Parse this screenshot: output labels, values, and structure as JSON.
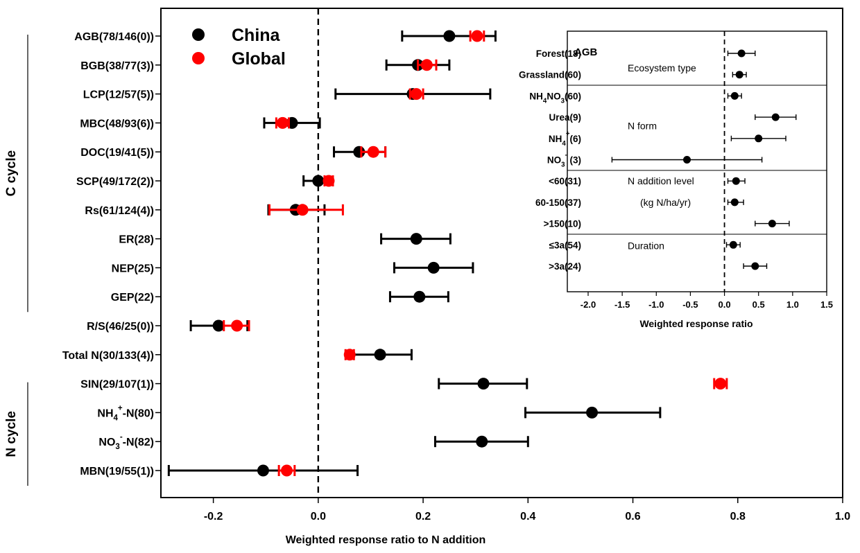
{
  "colors": {
    "china": "#000000",
    "global": "#ff0000",
    "axis": "#000000"
  },
  "chart_data": [
    {
      "type": "scatter",
      "xlabel": "Weighted response ratio to N addition",
      "ylabel": "",
      "xlim": [
        -0.3,
        1.0
      ],
      "xticks": [
        "-0.2",
        "0.0",
        "0.2",
        "0.4",
        "0.6",
        "0.8",
        "1.0"
      ],
      "xtick_values": [
        -0.2,
        0.0,
        0.2,
        0.4,
        0.6,
        0.8,
        1.0
      ],
      "reference_line": 0,
      "legend": {
        "position": "top-left",
        "entries": [
          "China",
          "Global"
        ]
      },
      "groups": [
        {
          "label": "C cycle",
          "from": 0,
          "to": 9
        },
        {
          "label": "N cycle",
          "from": 12,
          "to": 15
        }
      ],
      "categories": [
        {
          "text": "AGB(78/146(0))"
        },
        {
          "text": "BGB(38/77(3))"
        },
        {
          "text": "LCP(12/57(5))"
        },
        {
          "text": "MBC(48/93(6))"
        },
        {
          "text": "DOC(19/41(5))"
        },
        {
          "text": "SCP(49/172(2))"
        },
        {
          "text": "Rs(61/124(4))"
        },
        {
          "text": "ER(28)"
        },
        {
          "text": "NEP(25)"
        },
        {
          "text": "GEP(22)"
        },
        {
          "text": "R/S(46/25(0))"
        },
        {
          "text": "Total N(30/133(4))"
        },
        {
          "text": "SIN(29/107(1))"
        },
        {
          "base": "NH",
          "sub": "4",
          "sup": "+",
          "rest": "-N(80)"
        },
        {
          "base": "NO",
          "sub": "3",
          "sup": "-",
          "rest": "-N(82)"
        },
        {
          "text": "MBN(19/55(1))"
        }
      ],
      "series": [
        {
          "name": "China",
          "values": [
            0.25,
            0.19,
            0.18,
            -0.05,
            0.078,
            0.0,
            -0.043,
            0.187,
            0.22,
            0.193,
            -0.19,
            0.118,
            0.315,
            0.522,
            0.312,
            -0.105
          ],
          "ci_low": [
            0.16,
            0.13,
            0.033,
            -0.103,
            0.03,
            -0.028,
            -0.095,
            0.12,
            0.145,
            0.137,
            -0.243,
            0.06,
            0.23,
            0.395,
            0.223,
            -0.285
          ],
          "ci_high": [
            0.338,
            0.25,
            0.328,
            0.003,
            0.128,
            0.028,
            0.012,
            0.252,
            0.295,
            0.248,
            -0.135,
            0.178,
            0.398,
            0.652,
            0.4,
            0.075
          ]
        },
        {
          "name": "Global",
          "values": [
            0.303,
            0.207,
            0.187,
            -0.068,
            0.105,
            0.02,
            -0.03,
            null,
            null,
            null,
            -0.155,
            0.06,
            0.767,
            null,
            null,
            -0.06
          ],
          "ci_low": [
            0.29,
            0.19,
            0.175,
            -0.08,
            0.082,
            0.012,
            -0.093,
            null,
            null,
            null,
            -0.18,
            0.052,
            0.755,
            null,
            null,
            -0.075
          ],
          "ci_high": [
            0.316,
            0.225,
            0.2,
            -0.056,
            0.128,
            0.028,
            0.047,
            null,
            null,
            null,
            -0.132,
            0.068,
            0.779,
            null,
            null,
            -0.045
          ]
        }
      ]
    },
    {
      "type": "scatter",
      "title": "AGB",
      "xlabel": "Weighted response ratio",
      "xlim": [
        -2.0,
        1.5
      ],
      "xticks": [
        "-2.0",
        "-1.5",
        "-1.0",
        "-0.5",
        "0.0",
        "0.5",
        "1.0",
        "1.5"
      ],
      "xtick_values": [
        -2.0,
        -1.5,
        -1.0,
        -0.5,
        0.0,
        0.5,
        1.0,
        1.5
      ],
      "reference_line": 0,
      "sections": [
        {
          "label": "Ecosystem type",
          "from": 0,
          "to": 1
        },
        {
          "label": "N form",
          "from": 2,
          "to": 5
        },
        {
          "label": "N addition level",
          "label2": "(kg N/ha/yr)",
          "from": 6,
          "to": 8
        },
        {
          "label": "Duration",
          "from": 9,
          "to": 10
        }
      ],
      "categories": [
        {
          "text": "Forest(18)"
        },
        {
          "text": "Grassland(60)"
        },
        {
          "base": "NH",
          "sub": "4",
          "rest": "NO",
          "sub2": "3",
          "rest2": "(60)"
        },
        {
          "text": "Urea(9)"
        },
        {
          "base": "NH",
          "sub": "4",
          "sup": "+",
          "rest": "(6)"
        },
        {
          "base": "NO",
          "sub": "3",
          "sup": "-",
          "rest": " (3)"
        },
        {
          "text": "<60(31)"
        },
        {
          "text": "60-150(37)"
        },
        {
          "text": ">150(10)"
        },
        {
          "text": "≤3a(54)"
        },
        {
          "text": ">3a(24)"
        }
      ],
      "series": [
        {
          "name": "China",
          "values": [
            0.25,
            0.22,
            0.15,
            0.75,
            0.5,
            -0.55,
            0.17,
            0.15,
            0.7,
            0.13,
            0.45
          ],
          "ci_low": [
            0.05,
            0.12,
            0.05,
            0.45,
            0.1,
            -1.65,
            0.05,
            0.05,
            0.45,
            0.03,
            0.28
          ],
          "ci_high": [
            0.45,
            0.32,
            0.25,
            1.05,
            0.9,
            0.55,
            0.3,
            0.28,
            0.95,
            0.23,
            0.62
          ]
        }
      ]
    }
  ]
}
